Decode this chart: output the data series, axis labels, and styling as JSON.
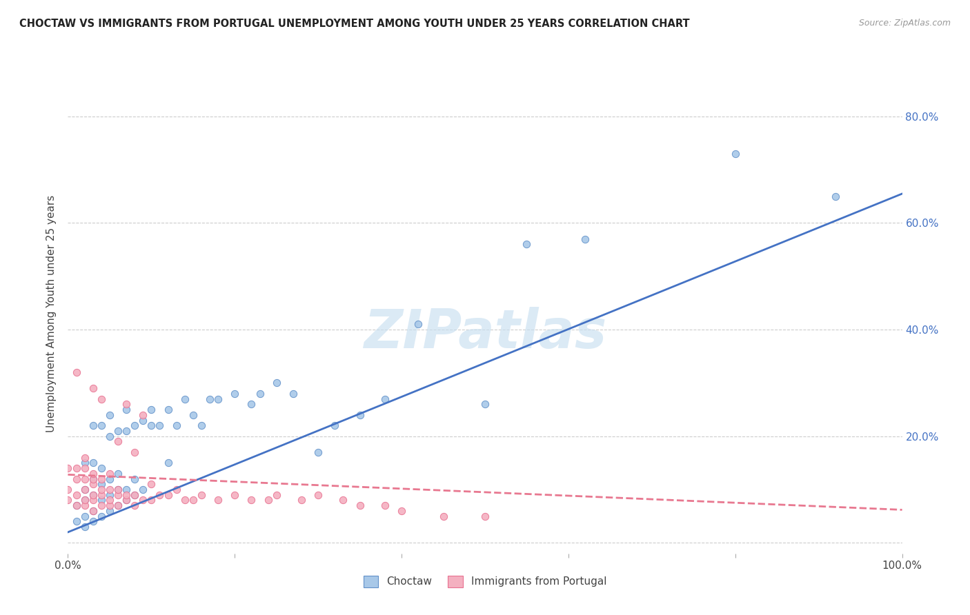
{
  "title": "CHOCTAW VS IMMIGRANTS FROM PORTUGAL UNEMPLOYMENT AMONG YOUTH UNDER 25 YEARS CORRELATION CHART",
  "source": "Source: ZipAtlas.com",
  "ylabel": "Unemployment Among Youth under 25 years",
  "xlim": [
    0,
    1.0
  ],
  "ylim": [
    -0.02,
    0.88
  ],
  "xticks": [
    0.0,
    0.2,
    0.4,
    0.6,
    0.8,
    1.0
  ],
  "xticklabels": [
    "0.0%",
    "",
    "",
    "",
    "",
    "100.0%"
  ],
  "yticks": [
    0.0,
    0.2,
    0.4,
    0.6,
    0.8
  ],
  "yticklabels_left": [
    "",
    "",
    "",
    "",
    ""
  ],
  "yticklabels_right": [
    "",
    "20.0%",
    "40.0%",
    "60.0%",
    "80.0%"
  ],
  "background_color": "#ffffff",
  "watermark": "ZIPatlas",
  "choctaw_color": "#a8c8e8",
  "portugal_color": "#f4b0c0",
  "choctaw_edge_color": "#6090c8",
  "portugal_edge_color": "#e87090",
  "choctaw_line_color": "#4472c4",
  "portugal_line_color": "#e87890",
  "legend_label1": "Choctaw",
  "legend_label2": "Immigrants from Portugal",
  "choctaw_x": [
    0.01,
    0.01,
    0.02,
    0.02,
    0.02,
    0.02,
    0.02,
    0.03,
    0.03,
    0.03,
    0.03,
    0.03,
    0.03,
    0.04,
    0.04,
    0.04,
    0.04,
    0.04,
    0.05,
    0.05,
    0.05,
    0.05,
    0.05,
    0.06,
    0.06,
    0.06,
    0.06,
    0.07,
    0.07,
    0.07,
    0.07,
    0.08,
    0.08,
    0.08,
    0.09,
    0.09,
    0.1,
    0.1,
    0.11,
    0.12,
    0.12,
    0.13,
    0.14,
    0.15,
    0.16,
    0.17,
    0.18,
    0.2,
    0.22,
    0.23,
    0.25,
    0.27,
    0.3,
    0.32,
    0.35,
    0.38,
    0.42,
    0.5,
    0.55,
    0.62,
    0.8,
    0.92
  ],
  "choctaw_y": [
    0.04,
    0.07,
    0.03,
    0.05,
    0.08,
    0.1,
    0.15,
    0.04,
    0.06,
    0.09,
    0.12,
    0.15,
    0.22,
    0.05,
    0.08,
    0.11,
    0.14,
    0.22,
    0.06,
    0.09,
    0.12,
    0.2,
    0.24,
    0.07,
    0.1,
    0.13,
    0.21,
    0.08,
    0.1,
    0.21,
    0.25,
    0.09,
    0.12,
    0.22,
    0.1,
    0.23,
    0.22,
    0.25,
    0.22,
    0.15,
    0.25,
    0.22,
    0.27,
    0.24,
    0.22,
    0.27,
    0.27,
    0.28,
    0.26,
    0.28,
    0.3,
    0.28,
    0.17,
    0.22,
    0.24,
    0.27,
    0.41,
    0.26,
    0.56,
    0.57,
    0.73,
    0.65
  ],
  "portugal_x": [
    0.0,
    0.0,
    0.0,
    0.01,
    0.01,
    0.01,
    0.01,
    0.01,
    0.02,
    0.02,
    0.02,
    0.02,
    0.02,
    0.02,
    0.03,
    0.03,
    0.03,
    0.03,
    0.03,
    0.03,
    0.03,
    0.04,
    0.04,
    0.04,
    0.04,
    0.04,
    0.05,
    0.05,
    0.05,
    0.05,
    0.06,
    0.06,
    0.06,
    0.06,
    0.07,
    0.07,
    0.07,
    0.08,
    0.08,
    0.08,
    0.09,
    0.09,
    0.1,
    0.1,
    0.11,
    0.12,
    0.13,
    0.14,
    0.15,
    0.16,
    0.18,
    0.2,
    0.22,
    0.24,
    0.25,
    0.28,
    0.3,
    0.33,
    0.35,
    0.38,
    0.4,
    0.45,
    0.5
  ],
  "portugal_y": [
    0.08,
    0.1,
    0.14,
    0.07,
    0.09,
    0.12,
    0.14,
    0.32,
    0.07,
    0.08,
    0.1,
    0.12,
    0.14,
    0.16,
    0.06,
    0.08,
    0.09,
    0.11,
    0.12,
    0.13,
    0.29,
    0.07,
    0.09,
    0.1,
    0.12,
    0.27,
    0.07,
    0.08,
    0.1,
    0.13,
    0.07,
    0.09,
    0.1,
    0.19,
    0.08,
    0.09,
    0.26,
    0.07,
    0.09,
    0.17,
    0.08,
    0.24,
    0.08,
    0.11,
    0.09,
    0.09,
    0.1,
    0.08,
    0.08,
    0.09,
    0.08,
    0.09,
    0.08,
    0.08,
    0.09,
    0.08,
    0.09,
    0.08,
    0.07,
    0.07,
    0.06,
    0.05,
    0.05
  ],
  "choctaw_line_x0": 0.0,
  "choctaw_line_y0": 0.02,
  "choctaw_line_x1": 1.0,
  "choctaw_line_y1": 0.655,
  "portugal_line_x0": 0.0,
  "portugal_line_y0": 0.128,
  "portugal_line_x1": 1.0,
  "portugal_line_y1": 0.062
}
